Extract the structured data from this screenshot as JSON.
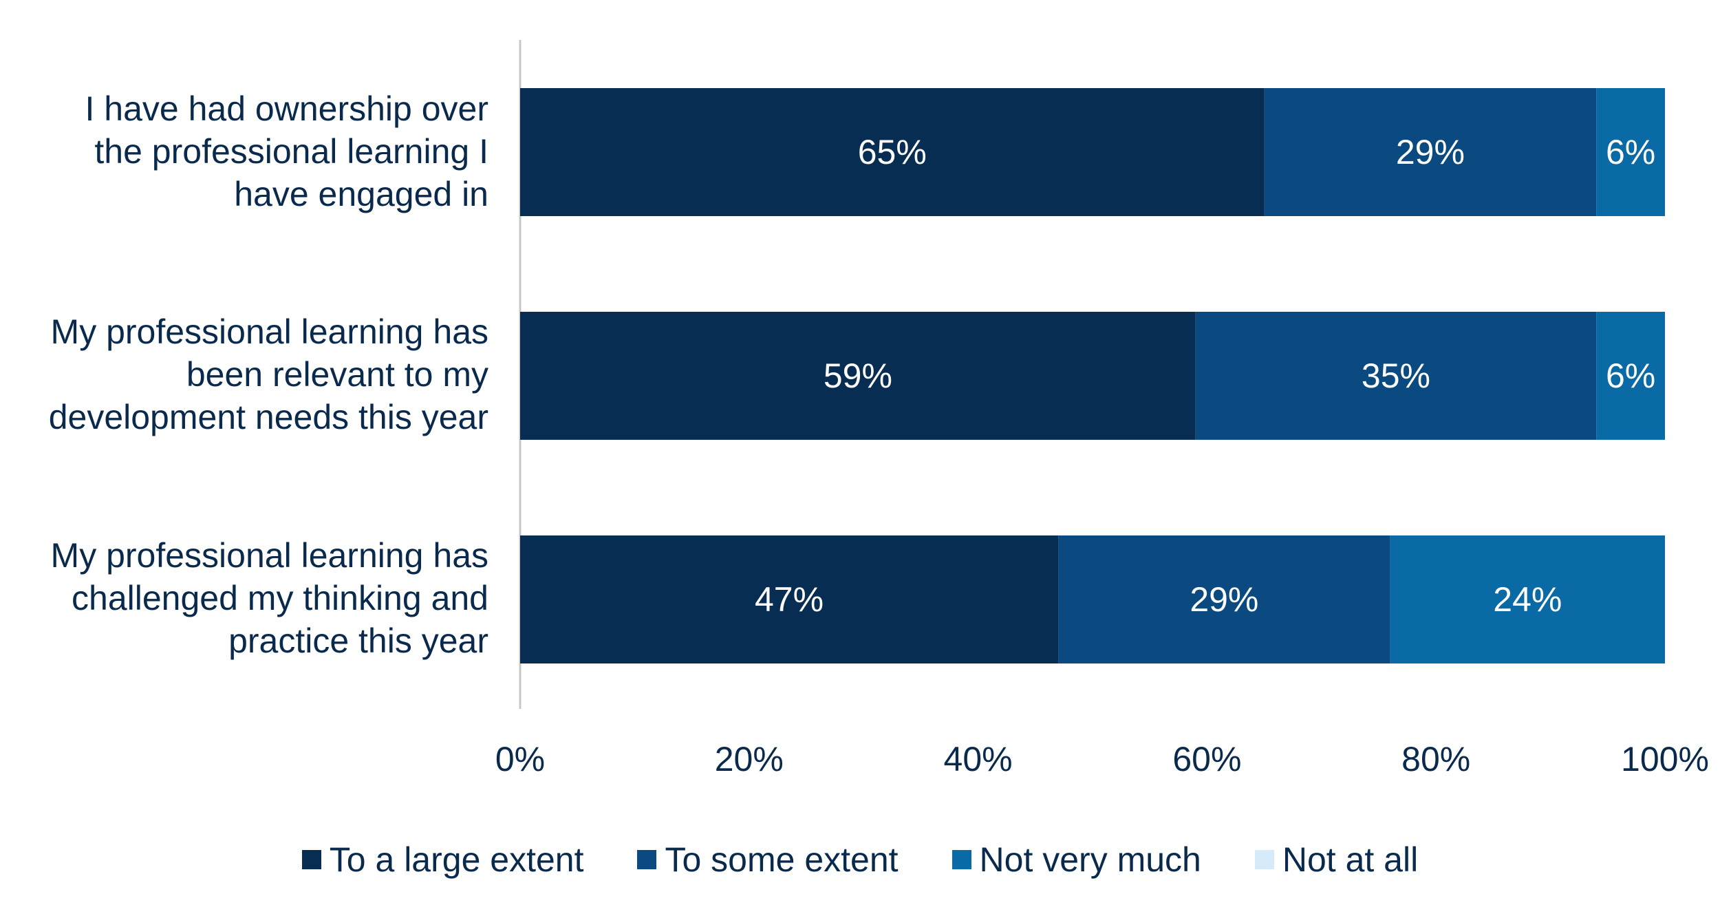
{
  "chart_data": {
    "type": "bar",
    "orientation": "horizontal",
    "stacked": true,
    "categories": [
      "I have had ownership over\nthe professional learning I\nhave engaged in",
      "My professional learning has\nbeen relevant to my\ndevelopment needs this year",
      "My professional learning has\nchallenged my thinking and\npractice this year"
    ],
    "series": [
      {
        "name": "To a large extent",
        "values": [
          65,
          59,
          47
        ],
        "labels": [
          "65%",
          "59%",
          "47%"
        ],
        "color": "#082d52"
      },
      {
        "name": "To some extent",
        "values": [
          29,
          35,
          29
        ],
        "labels": [
          "29%",
          "35%",
          "29%"
        ],
        "color": "#0b4a80"
      },
      {
        "name": "Not very much",
        "values": [
          6,
          6,
          24
        ],
        "labels": [
          "6%",
          "6%",
          "24%"
        ],
        "color": "#0a6aa5"
      },
      {
        "name": "Not at all",
        "values": [
          0,
          0,
          0
        ],
        "labels": [
          "",
          "",
          ""
        ],
        "color": "#d6ebf9"
      }
    ],
    "xlim": [
      0,
      100
    ],
    "xticks": [
      "0%",
      "20%",
      "40%",
      "60%",
      "80%",
      "100%"
    ],
    "grid": false,
    "legend_position": "bottom",
    "text_color": "#0a2a4d",
    "axis_line_color": "#c8c8c8",
    "data_label_color": "#ffffff"
  }
}
